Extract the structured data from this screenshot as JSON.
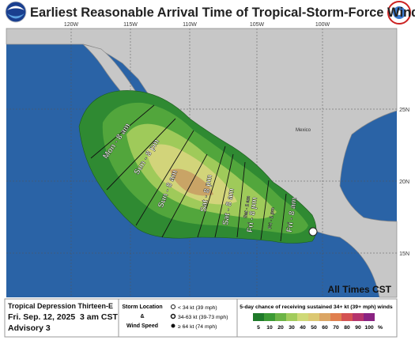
{
  "header": {
    "title": "Earliest Reasonable Arrival Time of Tropical-Storm-Force Winds"
  },
  "map": {
    "longitude_labels": [
      "120W",
      "115W",
      "110W",
      "105W",
      "100W"
    ],
    "latitude_labels": [
      "25N",
      "20N",
      "15N"
    ],
    "country_label": "Mexico",
    "arrival_times": [
      "Mon - 8 am",
      "Sun - 8 pm",
      "Sun - 8 am",
      "Sat - 8 pm",
      "Sat - 8 am",
      "Sat - 2 am",
      "Fri - 8 pm",
      "Fri - 2 pm",
      "Fri - 8 am"
    ],
    "time_zone_note": "All Times CST"
  },
  "footer": {
    "storm_name": "Tropical Depression Thirteen-E",
    "issued": "Fri. Sep. 12, 2025  3 am CST",
    "advisory": "Advisory 3",
    "legend_title_1": "Storm Location",
    "legend_title_2": "&",
    "legend_title_3": "Wind Speed",
    "wind_levels": [
      "< 34 kt (39 mph)",
      "34-63 kt (39-73 mph)",
      "≥ 64 kt (74 mph)"
    ],
    "scale_title": "5-day chance of receiving sustained 34+ kt (39+ mph) winds",
    "scale": [
      {
        "label": 5,
        "color": "#1f7a2a"
      },
      {
        "label": 10,
        "color": "#3c9a34"
      },
      {
        "label": 20,
        "color": "#6cb446"
      },
      {
        "label": 30,
        "color": "#a2cc5c"
      },
      {
        "label": 40,
        "color": "#cfd977"
      },
      {
        "label": 50,
        "color": "#dcc872"
      },
      {
        "label": 60,
        "color": "#dba564"
      },
      {
        "label": 70,
        "color": "#e07f4e"
      },
      {
        "label": 80,
        "color": "#d45252"
      },
      {
        "label": 90,
        "color": "#b5346c"
      },
      {
        "label": 100,
        "color": "#8a2382"
      }
    ],
    "scale_unit": "%"
  }
}
